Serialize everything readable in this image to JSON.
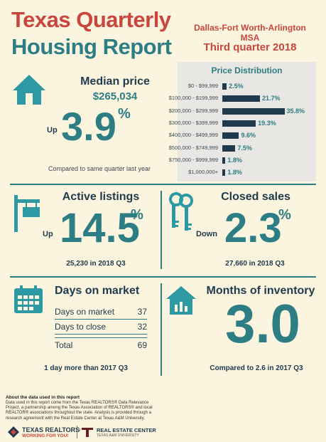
{
  "header": {
    "title_line1": "Texas Quarterly",
    "title_line2": "Housing Report",
    "msa": "Dallas-Fort Worth-Arlington MSA",
    "quarter": "Third quarter 2018"
  },
  "median_price": {
    "heading": "Median price",
    "value": "$265,034",
    "direction": "Up",
    "change": "3.9",
    "pct": "%",
    "note": "Compared to same quarter last year",
    "icon": "house-icon"
  },
  "price_distribution": {
    "title": "Price Distribution",
    "rows": [
      {
        "label": "$0 - $99,999",
        "value": "2.5%",
        "pct": 2.5
      },
      {
        "label": "$100,000 - $199,999",
        "value": "21.7%",
        "pct": 21.7
      },
      {
        "label": "$200,000 - $299,999",
        "value": "35.8%",
        "pct": 35.8
      },
      {
        "label": "$300,000 - $399,999",
        "value": "19.3%",
        "pct": 19.3
      },
      {
        "label": "$400,000 - $499,999",
        "value": "9.6%",
        "pct": 9.6
      },
      {
        "label": "$500,000 - $749,999",
        "value": "7.5%",
        "pct": 7.5
      },
      {
        "label": "$750,000 - $999,999",
        "value": "1.8%",
        "pct": 1.8
      },
      {
        "label": "$1,000,000+",
        "value": "1.8%",
        "pct": 1.8
      }
    ]
  },
  "active_listings": {
    "heading": "Active listings",
    "direction": "Up",
    "change": "14.5",
    "pct": "%",
    "note": "25,230 in 2018 Q3",
    "icon": "for-sale-sign-icon"
  },
  "closed_sales": {
    "heading": "Closed sales",
    "direction": "Down",
    "change": "2.3",
    "pct": "%",
    "note": "27,660 in 2018 Q3",
    "icon": "keys-icon"
  },
  "days_on_market": {
    "heading": "Days on market",
    "rows": [
      {
        "label": "Days on market",
        "value": "37"
      },
      {
        "label": "Days to close",
        "value": "32"
      }
    ],
    "total_label": "Total",
    "total_value": "69",
    "note": "1 day more than 2017 Q3",
    "icon": "calendar-icon"
  },
  "months_inventory": {
    "heading": "Months of inventory",
    "value": "3.0",
    "note": "Compared to 2.6 in 2017 Q3",
    "icon": "house-chart-icon"
  },
  "footer": {
    "heading": "About the data used in this report",
    "text": "Data used in this report come from the Texas REALTORS® Data Relevance Project, a partnership among the Texas Association of REALTORS® and local REALTOR® associations throughout the state. Analysis is provided through a research agreement with the Real Estate Center at Texas A&M University.",
    "logo1_name": "TEXAS REALTORS®",
    "logo1_tag": "WORKING FOR YOU!",
    "logo2_name": "REAL ESTATE CENTER",
    "logo2_tag": "TEXAS A&M UNIVERSITY"
  },
  "colors": {
    "teal": "#2d7d84",
    "red": "#c8463d",
    "navy": "#1f3a4d",
    "background": "#fbf5df"
  }
}
